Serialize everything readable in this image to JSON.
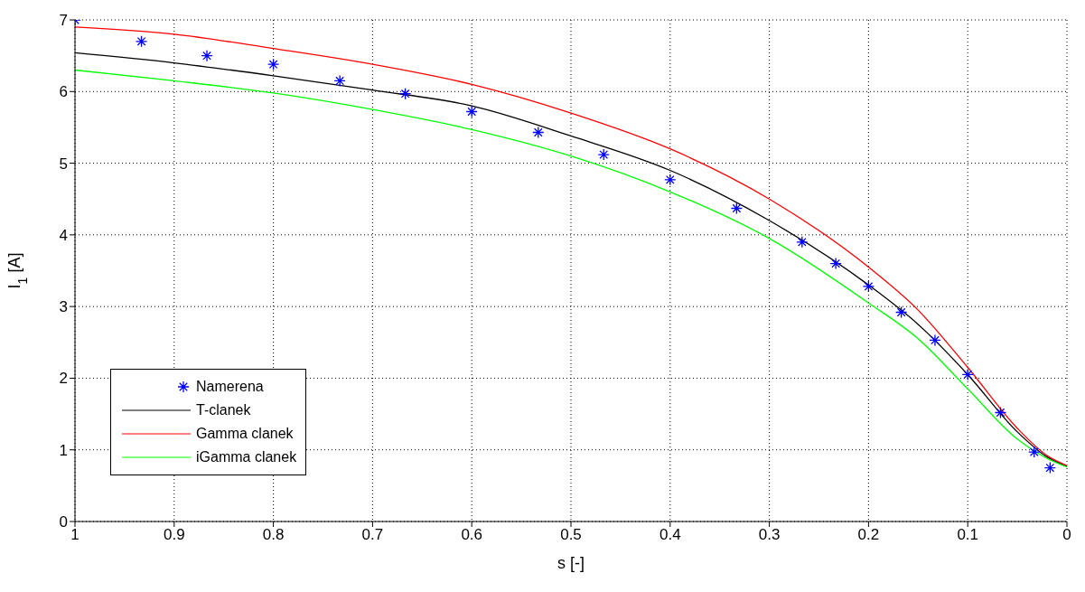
{
  "chart_data": {
    "type": "line",
    "xlabel": "s [-]",
    "ylabel": "I$_{1}$ [A]",
    "xlim": [
      1,
      0
    ],
    "xticks": [
      1,
      0.9,
      0.8,
      0.7,
      0.6,
      0.5,
      0.4,
      0.3,
      0.2,
      0.1,
      0
    ],
    "ylim": [
      0,
      7
    ],
    "yticks": [
      0,
      1,
      2,
      3,
      4,
      5,
      6,
      7
    ],
    "grid": true,
    "legend": "bottom left",
    "series": [
      {
        "name": "Namerena",
        "type": "scatter",
        "marker": "cross",
        "color": "#0000ff",
        "x": [
          1,
          0.933,
          0.867,
          0.8,
          0.733,
          0.667,
          0.6,
          0.533,
          0.467,
          0.4,
          0.333,
          0.267,
          0.233,
          0.2,
          0.167,
          0.133,
          0.1,
          0.067,
          0.033,
          0.017
        ],
        "values": [
          7.0,
          6.7,
          6.5,
          6.38,
          6.15,
          5.97,
          5.72,
          5.43,
          5.12,
          4.77,
          4.37,
          3.9,
          3.6,
          3.28,
          2.92,
          2.53,
          2.05,
          1.52,
          0.97,
          0.75
        ]
      },
      {
        "name": "T-clanek",
        "marker": "none",
        "color": "#000000",
        "x": [
          1,
          0.9,
          0.8,
          0.7,
          0.6,
          0.5,
          0.4,
          0.3,
          0.2,
          0.15,
          0.1,
          0.05,
          0.02,
          0
        ],
        "values": [
          6.54,
          6.4,
          6.22,
          6.02,
          5.8,
          5.38,
          4.9,
          4.2,
          3.3,
          2.75,
          2.05,
          1.25,
          0.9,
          0.77
        ]
      },
      {
        "name": "Gamma clanek",
        "marker": "none",
        "color": "#ff0000",
        "x": [
          1,
          0.9,
          0.8,
          0.7,
          0.6,
          0.5,
          0.4,
          0.3,
          0.2,
          0.15,
          0.1,
          0.05,
          0.02,
          0
        ],
        "values": [
          6.9,
          6.8,
          6.6,
          6.38,
          6.1,
          5.7,
          5.2,
          4.5,
          3.55,
          2.95,
          2.15,
          1.3,
          0.92,
          0.78
        ]
      },
      {
        "name": "iGamma clanek",
        "marker": "none",
        "color": "#00ff00",
        "x": [
          1,
          0.9,
          0.8,
          0.7,
          0.6,
          0.5,
          0.4,
          0.3,
          0.2,
          0.15,
          0.1,
          0.05,
          0.02,
          0
        ],
        "values": [
          6.3,
          6.15,
          5.98,
          5.75,
          5.47,
          5.1,
          4.6,
          3.95,
          3.05,
          2.55,
          1.85,
          1.15,
          0.88,
          0.76
        ]
      }
    ]
  }
}
